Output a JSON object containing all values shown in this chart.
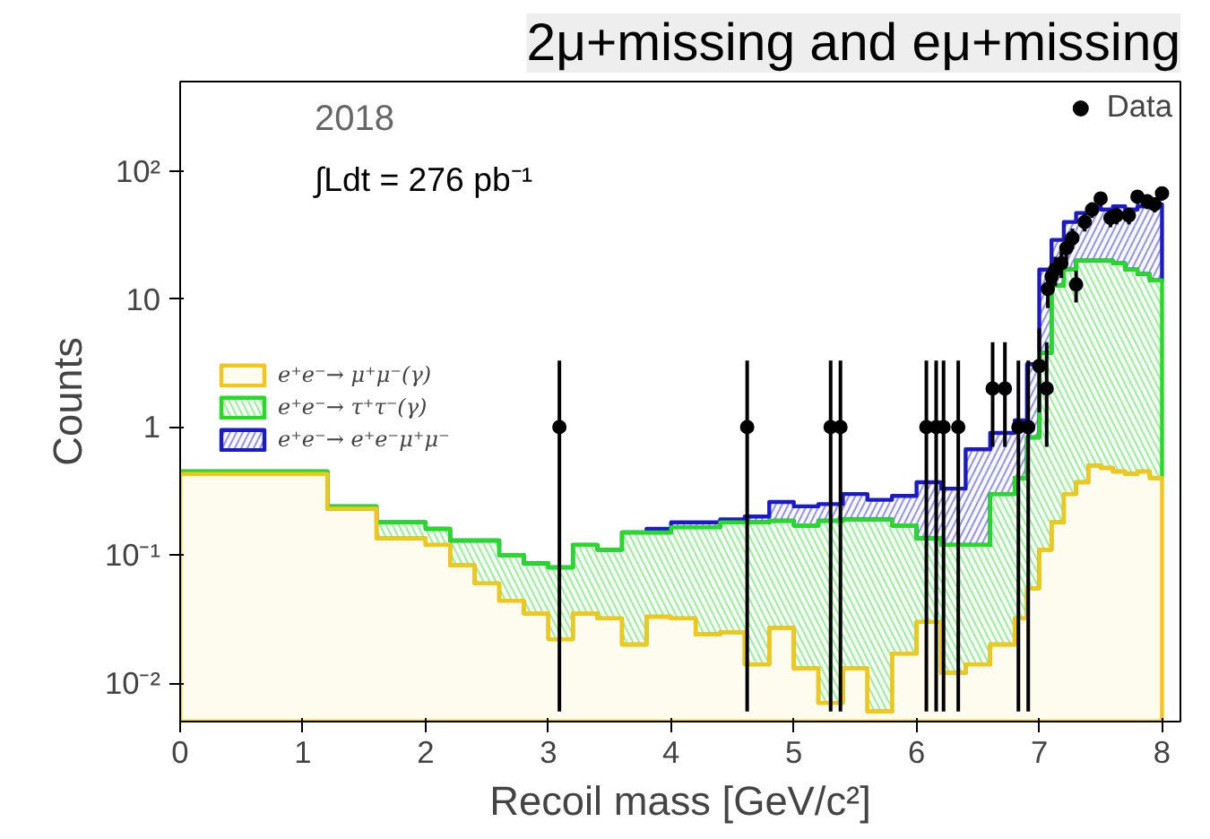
{
  "chart_data": {
    "type": "histogram",
    "title": "2μ+missing and eμ+missing",
    "xlabel": "Recoil mass [GeV/c²]",
    "ylabel": "Counts",
    "annotations": [
      "2018",
      "∫Ldt = 276 pb⁻¹"
    ],
    "bins": [
      0,
      1.2,
      1.4,
      1.6,
      1.8,
      2.0,
      2.2,
      2.4,
      2.6,
      2.8,
      3.0,
      3.2,
      3.4,
      3.6,
      3.8,
      4.0,
      4.2,
      4.4,
      4.6,
      4.8,
      5.0,
      5.2,
      5.4,
      5.6,
      5.8,
      6.0,
      6.2,
      6.4,
      6.6,
      6.8,
      6.9,
      7.0,
      7.1,
      7.2,
      7.3,
      7.4,
      7.5,
      7.6,
      7.7,
      7.8,
      7.9,
      8.0
    ],
    "series": [
      {
        "name": "e⁺e⁻→ e⁺e⁻μ⁺μ⁻",
        "color": "#1a1acc",
        "values": [
          0.45,
          0.24,
          0.24,
          0.18,
          0.18,
          0.16,
          0.13,
          0.13,
          0.1,
          0.086,
          0.08,
          0.12,
          0.11,
          0.15,
          0.16,
          0.18,
          0.18,
          0.19,
          0.2,
          0.26,
          0.24,
          0.25,
          0.3,
          0.27,
          0.29,
          0.37,
          0.33,
          0.67,
          0.9,
          1.13,
          3.1,
          17,
          29,
          40,
          47,
          53,
          50,
          53,
          50,
          53,
          55
        ]
      },
      {
        "name": "e⁺e⁻→ τ⁺τ⁻(γ)",
        "color": "#22dd22",
        "values": [
          0.45,
          0.24,
          0.24,
          0.18,
          0.18,
          0.16,
          0.13,
          0.13,
          0.1,
          0.086,
          0.08,
          0.12,
          0.11,
          0.15,
          0.15,
          0.165,
          0.165,
          0.18,
          0.18,
          0.185,
          0.17,
          0.185,
          0.19,
          0.19,
          0.17,
          0.135,
          0.12,
          0.12,
          0.3,
          0.4,
          0.83,
          3.8,
          12.7,
          17,
          20,
          20,
          20,
          19,
          17,
          15.7,
          14
        ]
      },
      {
        "name": "e⁺e⁻→ μ⁺μ⁻(γ)",
        "color": "#f5c518",
        "values": [
          0.43,
          0.23,
          0.23,
          0.135,
          0.135,
          0.12,
          0.083,
          0.06,
          0.044,
          0.035,
          0.022,
          0.035,
          0.032,
          0.02,
          0.033,
          0.032,
          0.024,
          0.025,
          0.014,
          0.027,
          0.013,
          0.007,
          0.013,
          0.006,
          0.017,
          0.03,
          0.012,
          0.014,
          0.02,
          0.032,
          0.055,
          0.11,
          0.18,
          0.3,
          0.37,
          0.5,
          0.48,
          0.45,
          0.43,
          0.45,
          0.4
        ]
      },
      {
        "name": "Data",
        "type": "scatter",
        "color": "#000000",
        "marker": "circle",
        "x": [
          3.09,
          4.62,
          5.3,
          5.38,
          6.08,
          6.16,
          6.22,
          6.34,
          6.62,
          6.72,
          6.83,
          6.91,
          7.0,
          7.06,
          7.07,
          7.1,
          7.13,
          7.18,
          7.22,
          7.27,
          7.3,
          7.37,
          7.43,
          7.5,
          7.58,
          7.63,
          7.73,
          7.8,
          7.88,
          7.94,
          8.0
        ],
        "values": [
          1,
          1,
          1,
          1,
          1,
          1,
          1,
          1,
          2,
          2,
          1,
          1,
          3,
          2,
          12,
          15,
          17,
          19,
          25,
          30,
          13,
          40,
          50,
          61,
          43,
          45,
          45,
          63,
          58,
          55,
          67
        ],
        "errors": [
          [
            0.006,
            3.3
          ],
          [
            0.006,
            3.3
          ],
          [
            0.006,
            3.3
          ],
          [
            0.006,
            3.3
          ],
          [
            0.006,
            3.3
          ],
          [
            0.006,
            3.3
          ],
          [
            0.006,
            3.3
          ],
          [
            0.006,
            3.3
          ],
          [
            0.7,
            4.6
          ],
          [
            0.7,
            4.6
          ],
          [
            0.006,
            3.3
          ],
          [
            0.006,
            3.3
          ],
          [
            1.3,
            5.9
          ],
          [
            0.7,
            4.6
          ],
          3.5,
          3.9,
          4.4,
          4.4,
          5,
          5.5,
          3.6,
          6.3,
          7,
          7.8,
          6.6,
          6.7,
          6.7,
          7.9,
          7.6,
          7.4,
          8.2
        ]
      }
    ],
    "xlim": [
      0,
      8.15
    ],
    "ylim": [
      0.005,
      500
    ],
    "log": true,
    "xticks": [
      0,
      1,
      2,
      3,
      4,
      5,
      6,
      7,
      8
    ],
    "yticks": [
      {
        "value": 0.01,
        "label": "10⁻²"
      },
      {
        "value": 0.1,
        "label": "10⁻¹"
      },
      1,
      10,
      {
        "value": 100,
        "label": "10²"
      }
    ],
    "legend": "top left",
    "grid": false
  }
}
